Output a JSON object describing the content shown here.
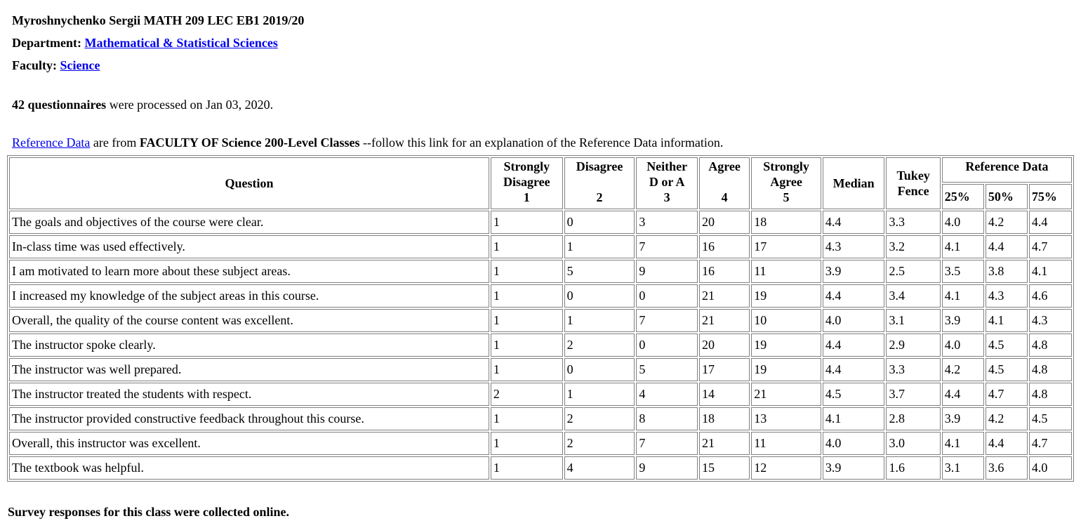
{
  "header": {
    "course_line": "Myroshnychenko Sergii MATH 209 LEC EB1 2019/20",
    "department_label": "Department:",
    "department_link": "Mathematical & Statistical Sciences",
    "faculty_label": "Faculty:",
    "faculty_link": "Science"
  },
  "processed": {
    "count_text": "42 questionnaires",
    "rest_text": " were processed on Jan 03, 2020."
  },
  "reference": {
    "link_text": "Reference Data",
    "mid_text": " are from ",
    "bold_text": "FACULTY OF Science 200-Level Classes",
    "tail_text": " --follow this link for an explanation of the Reference Data information."
  },
  "table": {
    "headers": {
      "question": "Question",
      "strongly_disagree": [
        "Strongly",
        "Disagree",
        "1"
      ],
      "disagree": [
        "Disagree",
        "2"
      ],
      "neither": [
        "Neither",
        "D or A",
        "3"
      ],
      "agree": [
        "Agree",
        "4"
      ],
      "strongly_agree": [
        "Strongly",
        "Agree",
        "5"
      ],
      "median": "Median",
      "tukey": [
        "Tukey",
        "Fence"
      ],
      "reference_data": "Reference Data",
      "p25": "25%",
      "p50": "50%",
      "p75": "75%"
    },
    "rows": [
      {
        "question": "The goals and objectives of the course were clear.",
        "sd": "1",
        "d": "0",
        "n": "3",
        "a": "20",
        "sa": "18",
        "median": "4.4",
        "tukey": "3.3",
        "p25": "4.0",
        "p50": "4.2",
        "p75": "4.4"
      },
      {
        "question": "In-class time was used effectively.",
        "sd": "1",
        "d": "1",
        "n": "7",
        "a": "16",
        "sa": "17",
        "median": "4.3",
        "tukey": "3.2",
        "p25": "4.1",
        "p50": "4.4",
        "p75": "4.7"
      },
      {
        "question": "I am motivated to learn more about these subject areas.",
        "sd": "1",
        "d": "5",
        "n": "9",
        "a": "16",
        "sa": "11",
        "median": "3.9",
        "tukey": "2.5",
        "p25": "3.5",
        "p50": "3.8",
        "p75": "4.1"
      },
      {
        "question": "I increased my knowledge of the subject areas in this course.",
        "sd": "1",
        "d": "0",
        "n": "0",
        "a": "21",
        "sa": "19",
        "median": "4.4",
        "tukey": "3.4",
        "p25": "4.1",
        "p50": "4.3",
        "p75": "4.6"
      },
      {
        "question": "Overall, the quality of the course content was excellent.",
        "sd": "1",
        "d": "1",
        "n": "7",
        "a": "21",
        "sa": "10",
        "median": "4.0",
        "tukey": "3.1",
        "p25": "3.9",
        "p50": "4.1",
        "p75": "4.3"
      },
      {
        "question": "The instructor spoke clearly.",
        "sd": "1",
        "d": "2",
        "n": "0",
        "a": "20",
        "sa": "19",
        "median": "4.4",
        "tukey": "2.9",
        "p25": "4.0",
        "p50": "4.5",
        "p75": "4.8"
      },
      {
        "question": "The instructor was well prepared.",
        "sd": "1",
        "d": "0",
        "n": "5",
        "a": "17",
        "sa": "19",
        "median": "4.4",
        "tukey": "3.3",
        "p25": "4.2",
        "p50": "4.5",
        "p75": "4.8"
      },
      {
        "question": "The instructor treated the students with respect.",
        "sd": "2",
        "d": "1",
        "n": "4",
        "a": "14",
        "sa": "21",
        "median": "4.5",
        "tukey": "3.7",
        "p25": "4.4",
        "p50": "4.7",
        "p75": "4.8"
      },
      {
        "question": "The instructor provided constructive feedback throughout this course.",
        "sd": "1",
        "d": "2",
        "n": "8",
        "a": "18",
        "sa": "13",
        "median": "4.1",
        "tukey": "2.8",
        "p25": "3.9",
        "p50": "4.2",
        "p75": "4.5"
      },
      {
        "question": "Overall, this instructor was excellent.",
        "sd": "1",
        "d": "2",
        "n": "7",
        "a": "21",
        "sa": "11",
        "median": "4.0",
        "tukey": "3.0",
        "p25": "4.1",
        "p50": "4.4",
        "p75": "4.7"
      },
      {
        "question": "The textbook was helpful.",
        "sd": "1",
        "d": "4",
        "n": "9",
        "a": "15",
        "sa": "12",
        "median": "3.9",
        "tukey": "1.6",
        "p25": "3.1",
        "p50": "3.6",
        "p75": "4.0"
      }
    ]
  },
  "footer": {
    "note": "Survey responses for this class were collected online."
  }
}
